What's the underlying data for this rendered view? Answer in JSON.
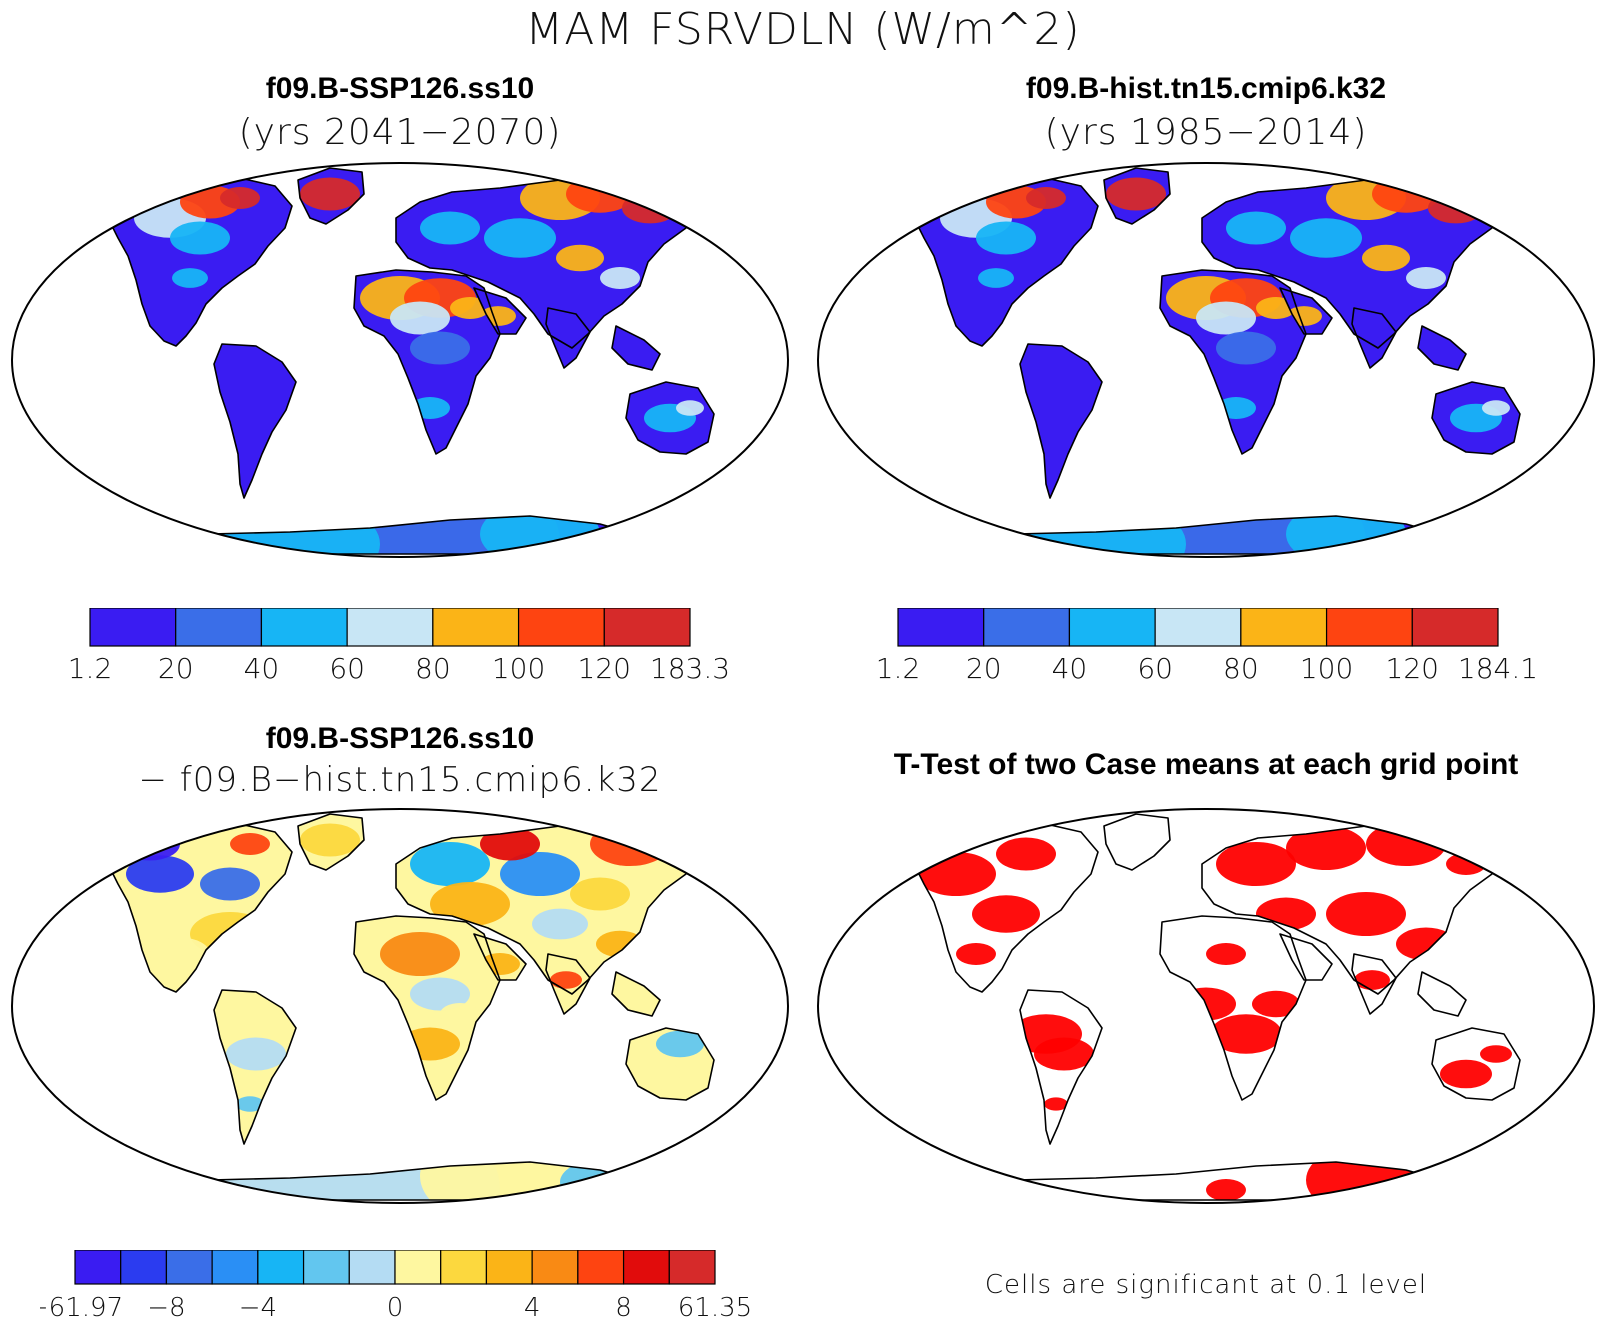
{
  "figure_title": "MAM FSRVDLN (W/m^2)",
  "colors": {
    "abs_scale": [
      "#3a1cf2",
      "#3a6ee8",
      "#17b5f5",
      "#c8e6f5",
      "#fbb417",
      "#fe4411",
      "#d62a2a"
    ],
    "diff_scale": [
      "#3a1cf2",
      "#2b3cf0",
      "#3a6ee8",
      "#2a8ff5",
      "#17b5f5",
      "#62c6ef",
      "#b4dcf3",
      "#fef7a0",
      "#fcd83e",
      "#fbb417",
      "#f98a14",
      "#fe4411",
      "#e10c0c",
      "#d62a2a"
    ],
    "significance": "#ff0000",
    "coastline": "#000000"
  },
  "panels": [
    {
      "id": "top-left",
      "title": "f09.B-SSP126.ss10",
      "subtitle": "(yrs 2041−2070)",
      "colorbar_labels": [
        "1.2",
        "20",
        "40",
        "60",
        "80",
        "100",
        "120",
        "183.3"
      ]
    },
    {
      "id": "top-right",
      "title": "f09.B-hist.tn15.cmip6.k32",
      "subtitle": "(yrs 1985−2014)",
      "colorbar_labels": [
        "1.2",
        "20",
        "40",
        "60",
        "80",
        "100",
        "120",
        "184.1"
      ]
    },
    {
      "id": "bottom-left",
      "title": "f09.B-SSP126.ss10",
      "subtitle": "− f09.B−hist.tn15.cmip6.k32",
      "colorbar_labels": [
        "−61.97",
        "−8",
        "−4",
        "0",
        "4",
        "8",
        "61.35"
      ]
    },
    {
      "id": "bottom-right",
      "title": "T-Test of two Case means at each grid point",
      "footnote": "Cells are significant at 0.1 level"
    }
  ]
}
